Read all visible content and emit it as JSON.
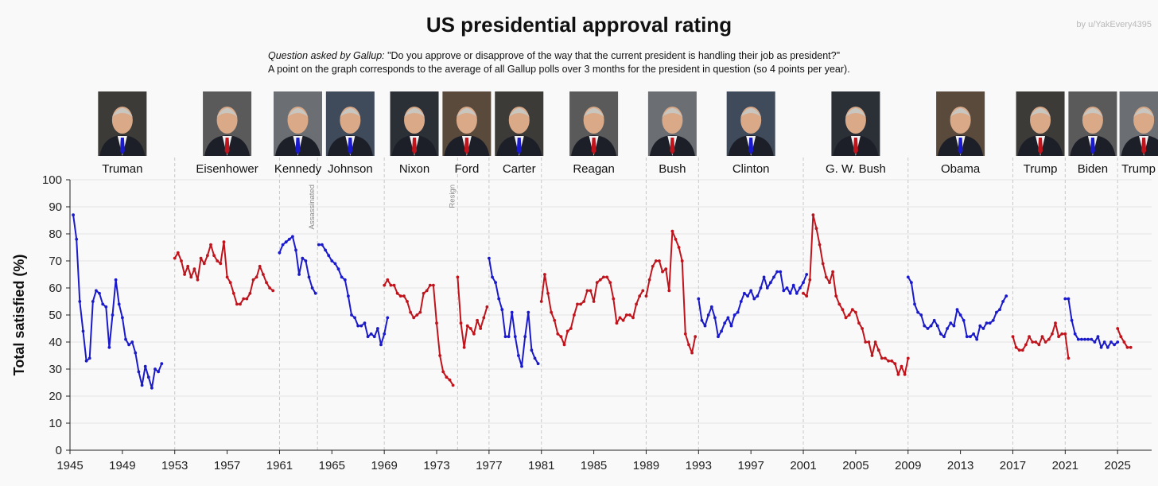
{
  "chart_data": {
    "type": "line",
    "title": "US presidential approval rating",
    "credit": "by u/YakEvery4395",
    "subtitle_lead": "Question asked by Gallup:",
    "subtitle_question": " \"Do you approve or disapprove of the way that the current president is handling their job as president?\"",
    "subtitle_line2": "A point on the graph corresponds to the average of all Gallup polls over 3 months for the president in question (so 4 points per year).",
    "ylabel": "Total satisfied (%)",
    "xlabel": "",
    "xlim": [
      1945,
      2027.6
    ],
    "ylim": [
      0,
      100
    ],
    "yticks": [
      0,
      10,
      20,
      30,
      40,
      50,
      60,
      70,
      80,
      90,
      100
    ],
    "xticks": [
      1945,
      1949,
      1953,
      1957,
      1961,
      1965,
      1969,
      1973,
      1977,
      1981,
      1985,
      1989,
      1993,
      1997,
      2001,
      2005,
      2009,
      2013,
      2017,
      2021,
      2025
    ],
    "grid": "horizontal",
    "term_boundaries": [
      1953,
      1961,
      1963.9,
      1969,
      1974.6,
      1977,
      1981,
      1989,
      1993,
      2001,
      2009,
      2017,
      2021,
      2025
    ],
    "annotations": [
      {
        "text": "Assassinated",
        "x": 1963.9
      },
      {
        "text": "Resign",
        "x": 1974.6
      }
    ],
    "colors": {
      "democrat": "#1a1acb",
      "republican": "#c0141d"
    },
    "presidents": [
      {
        "name": "Truman",
        "party": "democrat",
        "label_x": 1949,
        "photo_x": 1949
      },
      {
        "name": "Eisenhower",
        "party": "republican",
        "label_x": 1957,
        "photo_x": 1957
      },
      {
        "name": "Kennedy",
        "party": "democrat",
        "label_x": 1962.4,
        "photo_x": 1962.4
      },
      {
        "name": "Johnson",
        "party": "democrat",
        "label_x": 1966.4,
        "photo_x": 1966.4
      },
      {
        "name": "Nixon",
        "party": "republican",
        "label_x": 1971.3,
        "photo_x": 1971.3
      },
      {
        "name": "Ford",
        "party": "republican",
        "label_x": 1975.3,
        "photo_x": 1975.3
      },
      {
        "name": "Carter",
        "party": "democrat",
        "label_x": 1979.3,
        "photo_x": 1979.3
      },
      {
        "name": "Reagan",
        "party": "republican",
        "label_x": 1985,
        "photo_x": 1985
      },
      {
        "name": "Bush",
        "party": "republican",
        "label_x": 1991,
        "photo_x": 1991
      },
      {
        "name": "Clinton",
        "party": "democrat",
        "label_x": 1997,
        "photo_x": 1997
      },
      {
        "name": "G. W. Bush",
        "party": "republican",
        "label_x": 2005,
        "photo_x": 2005
      },
      {
        "name": "Obama",
        "party": "democrat",
        "label_x": 2013,
        "photo_x": 2013
      },
      {
        "name": "Trump",
        "party": "republican",
        "label_x": 2019.1,
        "photo_x": 2019.1
      },
      {
        "name": "Biden",
        "party": "democrat",
        "label_x": 2023.1,
        "photo_x": 2023.1
      },
      {
        "name": "Trump",
        "party": "republican",
        "label_x": 2026.6,
        "photo_x": 2027
      }
    ],
    "series": [
      {
        "name": "Truman",
        "party": "democrat",
        "start": 1945.25,
        "values": [
          87,
          78,
          55,
          44,
          33,
          34,
          55,
          59,
          58,
          54,
          53,
          38,
          50,
          63,
          54,
          49,
          41,
          39,
          40,
          36,
          29,
          24,
          31,
          27,
          23,
          30,
          29,
          32
        ]
      },
      {
        "name": "Eisenhower",
        "party": "republican",
        "start": 1953.0,
        "values": [
          71,
          73,
          70,
          65,
          68,
          64,
          67,
          63,
          71,
          69,
          72,
          76,
          72,
          70,
          69,
          77,
          64,
          62,
          58,
          54,
          54,
          56,
          56,
          58,
          63,
          64,
          68,
          65,
          62,
          60,
          59
        ]
      },
      {
        "name": "Kennedy",
        "party": "democrat",
        "start": 1961.0,
        "values": [
          73,
          76,
          77,
          78,
          79,
          74,
          65,
          71,
          70,
          64,
          60,
          58
        ]
      },
      {
        "name": "Johnson",
        "party": "democrat",
        "start": 1964.0,
        "values": [
          76,
          76,
          74,
          72,
          70,
          69,
          67,
          64,
          63,
          57,
          50,
          49,
          46,
          46,
          47,
          42,
          43,
          42,
          45,
          39,
          43,
          49
        ]
      },
      {
        "name": "Nixon",
        "party": "republican",
        "start": 1969.0,
        "values": [
          61,
          63,
          61,
          61,
          58,
          57,
          57,
          55,
          51,
          49,
          50,
          51,
          58,
          59,
          61,
          61,
          47,
          35,
          29,
          27,
          26,
          24
        ]
      },
      {
        "name": "Ford",
        "party": "republican",
        "start": 1974.6,
        "values": [
          64,
          47,
          38,
          46,
          45,
          43,
          48,
          45,
          49,
          53
        ]
      },
      {
        "name": "Carter",
        "party": "democrat",
        "start": 1977.0,
        "values": [
          71,
          64,
          62,
          56,
          52,
          42,
          42,
          51,
          42,
          35,
          31,
          42,
          51,
          37,
          34,
          32
        ]
      },
      {
        "name": "Reagan",
        "party": "republican",
        "start": 1981.0,
        "values": [
          55,
          65,
          58,
          51,
          48,
          43,
          42,
          39,
          44,
          45,
          50,
          54,
          54,
          55,
          59,
          59,
          55,
          62,
          63,
          64,
          64,
          62,
          56,
          47,
          49,
          48,
          50,
          50,
          49,
          54,
          57,
          59
        ]
      },
      {
        "name": "Bush",
        "party": "republican",
        "start": 1989.0,
        "values": [
          57,
          63,
          68,
          70,
          70,
          66,
          67,
          59,
          81,
          78,
          75,
          70,
          43,
          39,
          36,
          42
        ]
      },
      {
        "name": "Clinton",
        "party": "democrat",
        "start": 1993.0,
        "values": [
          56,
          48,
          46,
          50,
          53,
          49,
          42,
          44,
          47,
          49,
          46,
          50,
          51,
          55,
          58,
          57,
          59,
          56,
          57,
          60,
          64,
          60,
          62,
          64,
          66,
          66,
          59,
          60,
          58,
          61,
          58,
          60,
          62,
          65
        ]
      },
      {
        "name": "G. W. Bush",
        "party": "republican",
        "start": 2001.0,
        "values": [
          58,
          57,
          63,
          87,
          82,
          76,
          69,
          64,
          62,
          66,
          57,
          54,
          52,
          49,
          50,
          52,
          51,
          47,
          45,
          40,
          40,
          35,
          40,
          37,
          34,
          34,
          33,
          33,
          32,
          28,
          31,
          28,
          34
        ]
      },
      {
        "name": "Obama",
        "party": "democrat",
        "start": 2009.0,
        "values": [
          64,
          62,
          54,
          51,
          50,
          46,
          45,
          46,
          48,
          46,
          43,
          42,
          45,
          47,
          46,
          52,
          50,
          48,
          42,
          42,
          43,
          41,
          46,
          45,
          47,
          47,
          48,
          51,
          52,
          55,
          57
        ]
      },
      {
        "name": "Trump",
        "party": "republican",
        "start": 2017.0,
        "values": [
          42,
          38,
          37,
          37,
          39,
          42,
          40,
          40,
          39,
          42,
          40,
          41,
          43,
          47,
          42,
          43,
          43,
          34
        ]
      },
      {
        "name": "Biden",
        "party": "democrat",
        "start": 2021.0,
        "values": [
          56,
          56,
          48,
          43,
          41,
          41,
          41,
          41,
          41,
          40,
          42,
          38,
          40,
          38,
          40,
          39,
          40
        ]
      },
      {
        "name": "Trump",
        "party": "republican",
        "start": 2025.0,
        "values": [
          45,
          42,
          40,
          38,
          38
        ]
      }
    ]
  }
}
